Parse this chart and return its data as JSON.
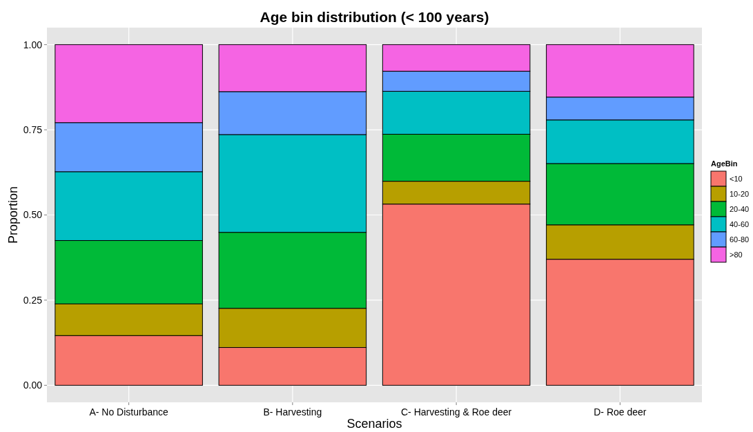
{
  "chart_data": {
    "type": "bar",
    "title": "Age bin distribution (< 100 years)",
    "xlabel": "Scenarios",
    "ylabel": "Proportion",
    "legend_title": "AgeBin",
    "categories": [
      "A- No Disturbance",
      "B- Harvesting",
      "C- Harvesting & Roe deer",
      "D- Roe deer"
    ],
    "stacked": true,
    "series": [
      {
        "name": "<10",
        "color": "#f8766d",
        "values": [
          0.146,
          0.111,
          0.532,
          0.37
        ]
      },
      {
        "name": "10-20",
        "color": "#b79f00",
        "values": [
          0.093,
          0.115,
          0.067,
          0.101
        ]
      },
      {
        "name": "20-40",
        "color": "#00ba38",
        "values": [
          0.186,
          0.223,
          0.138,
          0.18
        ]
      },
      {
        "name": "40-60",
        "color": "#00bfc4",
        "values": [
          0.202,
          0.287,
          0.126,
          0.128
        ]
      },
      {
        "name": "60-80",
        "color": "#619cff",
        "values": [
          0.144,
          0.126,
          0.059,
          0.067
        ]
      },
      {
        "name": ">80",
        "color": "#f564e3",
        "values": [
          0.229,
          0.138,
          0.078,
          0.154
        ]
      }
    ],
    "ylim": [
      -0.05,
      1.05
    ],
    "yticks": [
      {
        "value": 0,
        "label": "0.00"
      },
      {
        "value": 0.25,
        "label": "0.25"
      },
      {
        "value": 0.5,
        "label": "0.50"
      },
      {
        "value": 0.75,
        "label": "0.75"
      },
      {
        "value": 1,
        "label": "1.00"
      }
    ],
    "grid": true,
    "legend": "right"
  }
}
